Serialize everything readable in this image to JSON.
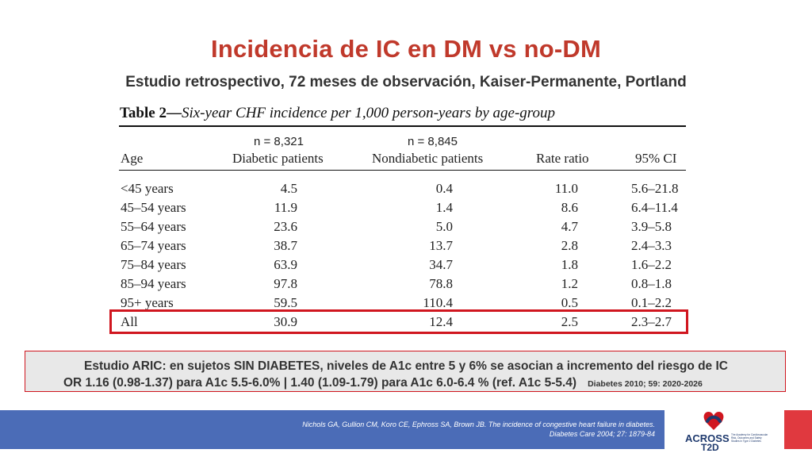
{
  "slide": {
    "title": "Incidencia de IC en DM vs no-DM",
    "subtitle": "Estudio retrospectivo, 72 meses de observación, Kaiser-Permanente, Portland"
  },
  "table": {
    "caption_bold": "Table 2—",
    "caption_italic": "Six-year CHF incidence per 1,000 person-years by age-group",
    "n_diabetic": "n =  8,321",
    "n_nondiabetic": "n = 8,845",
    "headers": {
      "age": "Age",
      "diabetic": "Diabetic patients",
      "nondiabetic": "Nondiabetic patients",
      "rate_ratio": "Rate ratio",
      "ci": "95% CI"
    },
    "rows": [
      {
        "age": "<45 years",
        "diabetic": "4.5",
        "nondiabetic": "0.4",
        "rate_ratio": "11.0",
        "ci": "5.6–21.8"
      },
      {
        "age": "45–54 years",
        "diabetic": "11.9",
        "nondiabetic": "1.4",
        "rate_ratio": "8.6",
        "ci": "6.4–11.4"
      },
      {
        "age": "55–64 years",
        "diabetic": "23.6",
        "nondiabetic": "5.0",
        "rate_ratio": "4.7",
        "ci": "3.9–5.8"
      },
      {
        "age": "65–74 years",
        "diabetic": "38.7",
        "nondiabetic": "13.7",
        "rate_ratio": "2.8",
        "ci": "2.4–3.3"
      },
      {
        "age": "75–84 years",
        "diabetic": "63.9",
        "nondiabetic": "34.7",
        "rate_ratio": "1.8",
        "ci": "1.6–2.2"
      },
      {
        "age": "85–94 years",
        "diabetic": "97.8",
        "nondiabetic": "78.8",
        "rate_ratio": "1.2",
        "ci": "0.8–1.8"
      },
      {
        "age": "95+ years",
        "diabetic": "59.5",
        "nondiabetic": "110.4",
        "rate_ratio": "0.5",
        "ci": "0.1–2.2"
      },
      {
        "age": "All",
        "diabetic": "30.9",
        "nondiabetic": "12.4",
        "rate_ratio": "2.5",
        "ci": "2.3–2.7"
      }
    ]
  },
  "aric": {
    "line1": "Estudio ARIC: en sujetos SIN DIABETES, niveles de A1c entre 5 y 6% se asocian a incremento del riesgo de IC",
    "line2": "OR 1.16 (0.98-1.37) para A1c 5.5-6.0% | 1.40 (1.09-1.79) para A1c 6.0-6.4 % (ref. A1c 5-5.4)",
    "reference": "Diabetes 2010; 59: 2020-2026"
  },
  "footer": {
    "citation_line1": "Nichols GA, Gullion CM, Koro CE, Ephross SA, Brown JB. The incidence of congestive heart failure in diabetes.",
    "citation_line2": "Diabetes Care 2004; 27: 1879-84",
    "logo_text_top": "ACROSS",
    "logo_text_bottom": "T2D",
    "logo_tagline": "The Academy for Cardiovascular Risk, Outcomes and Safety Studies in Type 2 Diabetes"
  },
  "colors": {
    "title_red": "#c0392b",
    "highlight_red": "#d0161f",
    "footer_blue": "#4b6cb7",
    "logo_navy": "#1f3a6e"
  }
}
